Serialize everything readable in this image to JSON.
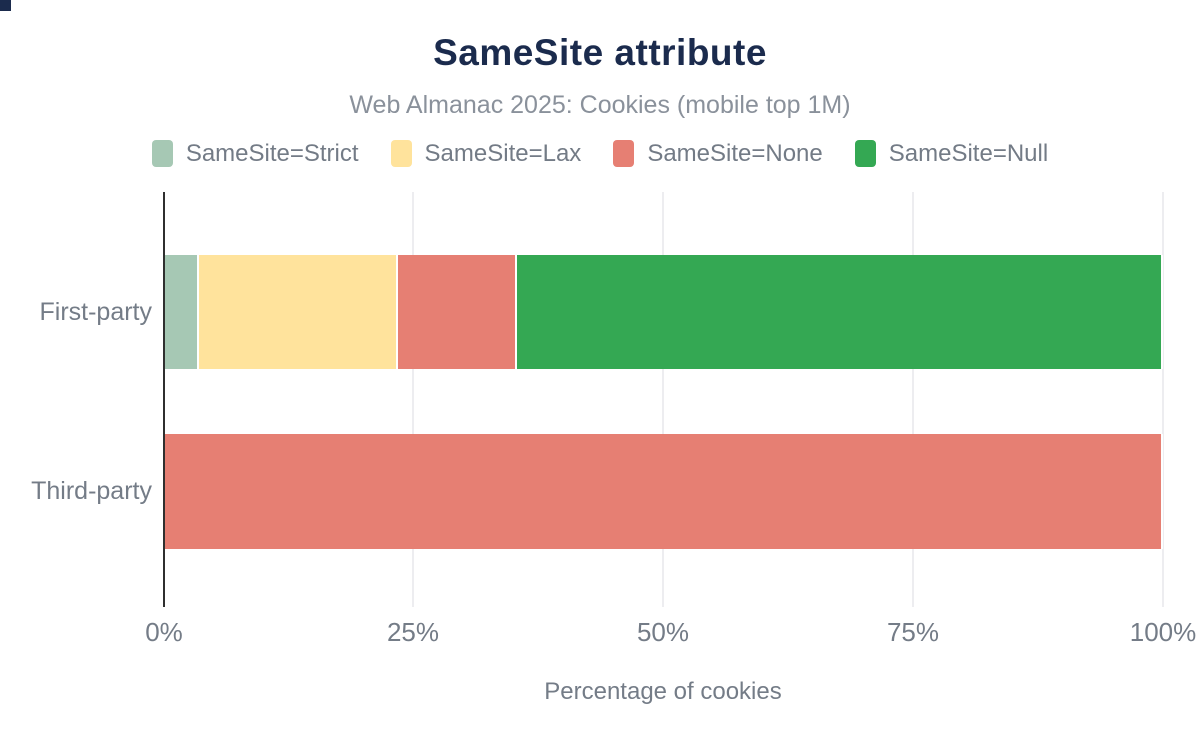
{
  "chart_data": {
    "type": "bar",
    "orientation": "horizontal-stacked",
    "title": "SameSite attribute",
    "subtitle": "Web Almanac 2025: Cookies (mobile top 1M)",
    "categories": [
      "First-party",
      "Third-party"
    ],
    "series": [
      {
        "name": "SameSite=Strict",
        "color": "#a6c8b4",
        "values": [
          3.4,
          0
        ]
      },
      {
        "name": "SameSite=Lax",
        "color": "#ffe39c",
        "values": [
          19.9,
          0
        ]
      },
      {
        "name": "SameSite=None",
        "color": "#e67f73",
        "values": [
          12.0,
          100
        ]
      },
      {
        "name": "SameSite=Null",
        "color": "#34a853",
        "values": [
          64.7,
          0
        ]
      }
    ],
    "xlabel": "Percentage of cookies",
    "x_ticks": [
      "0%",
      "25%",
      "50%",
      "75%",
      "100%"
    ],
    "xlim": [
      0,
      100
    ],
    "grid": true,
    "legend_position": "top",
    "colors": {
      "title_text": "#1b2b4d",
      "subtitle_text": "#8a919b",
      "axis_text": "#747c87",
      "gridline": "#ededf0",
      "axis_line": "#2f2f2f"
    }
  }
}
